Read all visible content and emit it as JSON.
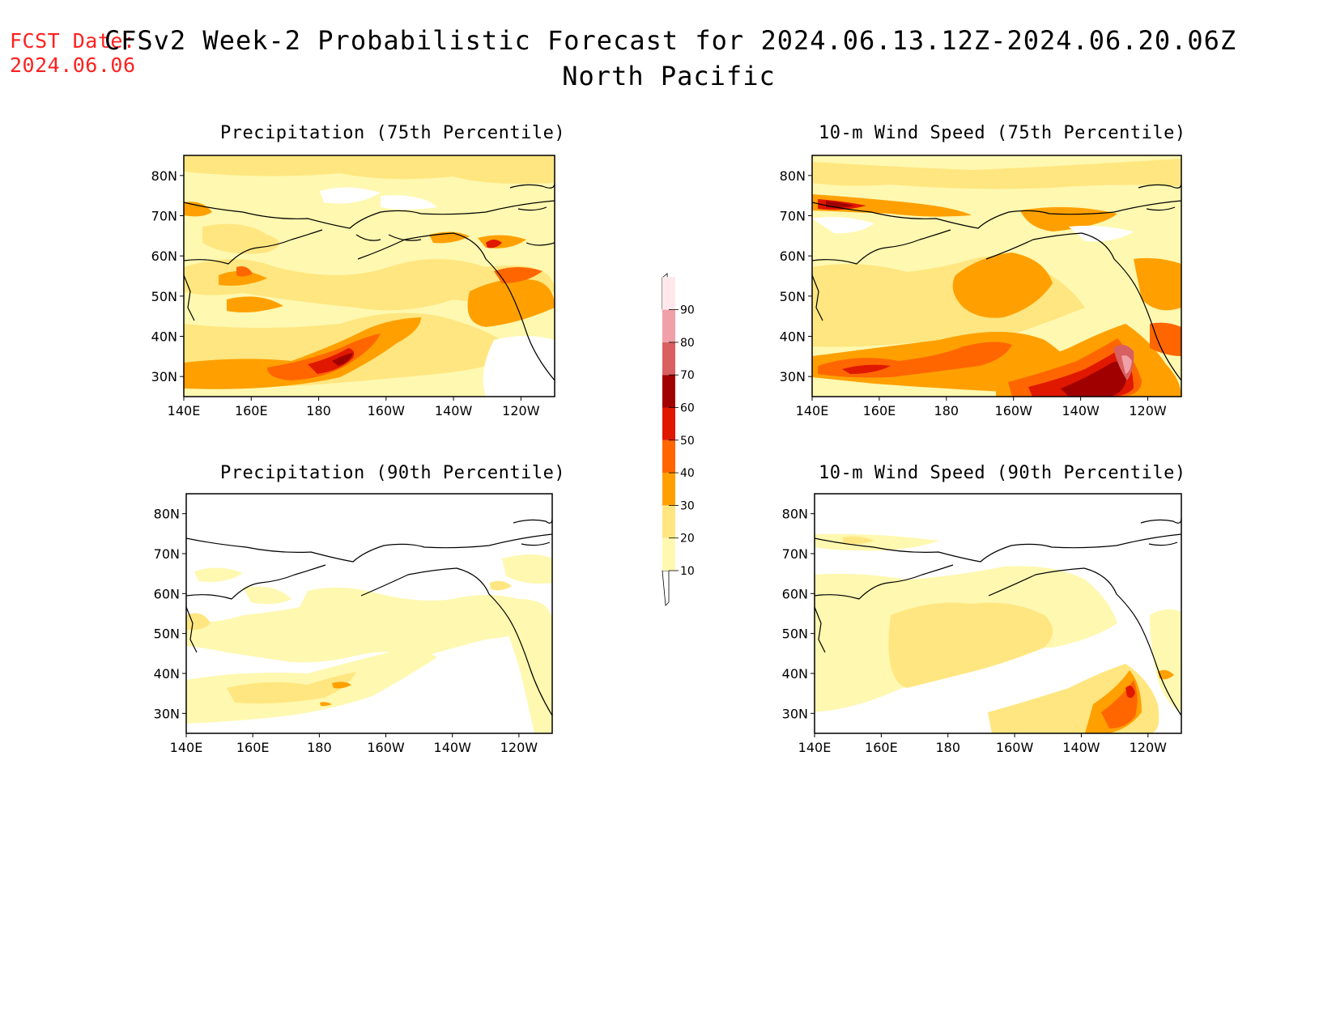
{
  "header": {
    "fcst_label": "FCST Date:",
    "fcst_date": "2024.06.06",
    "title_line1": "CFSv2 Week-2 Probabilistic Forecast for 2024.06.13.12Z-2024.06.20.06Z",
    "title_line2": "North Pacific"
  },
  "panels": [
    {
      "title": "Precipitation (75th Percentile)"
    },
    {
      "title": "10-m Wind Speed (75th Percentile)"
    },
    {
      "title": "Precipitation (90th Percentile)"
    },
    {
      "title": "10-m Wind Speed (90th Percentile)"
    }
  ],
  "axes": {
    "lat_labels": [
      "80N",
      "70N",
      "60N",
      "50N",
      "40N",
      "30N"
    ],
    "lon_labels": [
      "140E",
      "160E",
      "180",
      "160W",
      "140W",
      "120W"
    ]
  },
  "colorbar": {
    "levels": [
      "10",
      "20",
      "30",
      "40",
      "50",
      "60",
      "70",
      "80",
      "90"
    ],
    "colors": [
      "#fff8b0",
      "#ffe680",
      "#ffa000",
      "#ff6600",
      "#e01800",
      "#a00000",
      "#d86060",
      "#f0a0a8",
      "#ffe8ec"
    ]
  },
  "colors": {
    "fcst_text": "#ff2020"
  }
}
